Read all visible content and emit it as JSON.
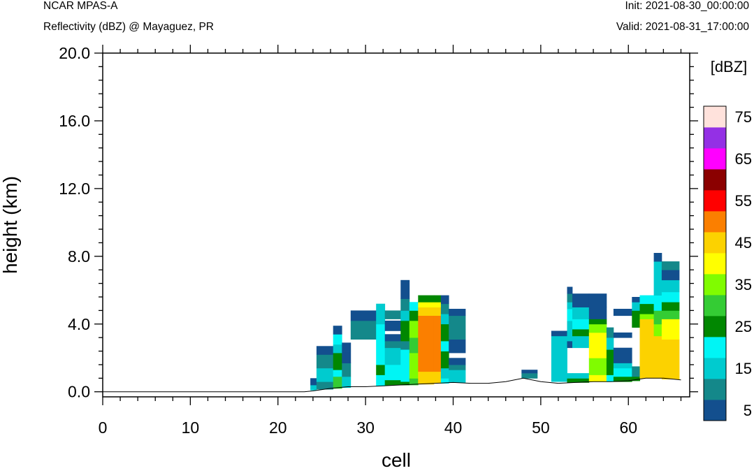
{
  "header": {
    "model": "NCAR MPAS-A",
    "field": "Reflectivity (dBZ) @ Mayaguez, PR",
    "init": "Init: 2021-08-30_00:00:00",
    "valid": "Valid: 2021-08-31_17:00:00"
  },
  "chart_data": {
    "type": "heatmap",
    "title": "Reflectivity (dBZ) @ Mayaguez, PR",
    "xlabel": "cell",
    "ylabel": "height (km)",
    "xlim": [
      0,
      67
    ],
    "ylim": [
      -0.3,
      20.0
    ],
    "x_ticks": [
      0,
      10,
      20,
      30,
      40,
      50,
      60
    ],
    "x_tick_labels": [
      "0",
      "10",
      "20",
      "30",
      "40",
      "50",
      "60"
    ],
    "y_ticks": [
      0,
      4,
      8,
      12,
      16,
      20
    ],
    "y_tick_labels": [
      "0.0",
      "4.0",
      "8.0",
      "12.0",
      "16.0",
      "20.0"
    ],
    "colorbar": {
      "title": "[dBZ]",
      "levels": [
        5,
        10,
        15,
        20,
        25,
        30,
        35,
        40,
        45,
        50,
        55,
        60,
        65,
        70,
        75
      ],
      "labels": [
        "5",
        "15",
        "25",
        "35",
        "45",
        "55",
        "65",
        "75"
      ],
      "colors": [
        "#134f8e",
        "#14888a",
        "#00cbcf",
        "#00f5f5",
        "#018701",
        "#34cc34",
        "#80fc00",
        "#ffff00",
        "#fcd200",
        "#fb7f00",
        "#ff0000",
        "#8b0000",
        "#ff00ff",
        "#9430e5",
        "#ffe2dc"
      ]
    },
    "terrain": [
      [
        0,
        0
      ],
      [
        23,
        0
      ],
      [
        24,
        0.05
      ],
      [
        26,
        0.2
      ],
      [
        28,
        0.3
      ],
      [
        30,
        0.3
      ],
      [
        32,
        0.35
      ],
      [
        34,
        0.4
      ],
      [
        36,
        0.45
      ],
      [
        38,
        0.5
      ],
      [
        40,
        0.55
      ],
      [
        42,
        0.5
      ],
      [
        44,
        0.5
      ],
      [
        46,
        0.6
      ],
      [
        48,
        0.8
      ],
      [
        50,
        0.6
      ],
      [
        52,
        0.5
      ],
      [
        54,
        0.55
      ],
      [
        56,
        0.6
      ],
      [
        58,
        0.6
      ],
      [
        60,
        0.65
      ],
      [
        62,
        0.8
      ],
      [
        64,
        0.8
      ],
      [
        66,
        0.7
      ]
    ],
    "columns": [
      {
        "x": [
          23.7,
          24.4
        ],
        "layers": [
          [
            0.1,
            0.4,
            15
          ],
          [
            0.4,
            0.8,
            5
          ]
        ]
      },
      {
        "x": [
          24.4,
          26.3
        ],
        "layers": [
          [
            0.15,
            0.6,
            10
          ],
          [
            0.6,
            1.4,
            15
          ],
          [
            1.4,
            2.2,
            10
          ],
          [
            2.2,
            2.7,
            5
          ]
        ]
      },
      {
        "x": [
          26.3,
          27.3
        ],
        "layers": [
          [
            0.2,
            0.9,
            30
          ],
          [
            0.9,
            1.3,
            20
          ],
          [
            1.3,
            2.3,
            25
          ],
          [
            2.3,
            2.8,
            15
          ],
          [
            2.8,
            3.4,
            20
          ],
          [
            3.4,
            3.9,
            5
          ]
        ]
      },
      {
        "x": [
          27.3,
          28.3
        ],
        "layers": [
          [
            0.25,
            0.9,
            15
          ],
          [
            0.9,
            1.7,
            10
          ],
          [
            1.7,
            2.4,
            5
          ],
          [
            2.4,
            2.9,
            5
          ]
        ]
      },
      {
        "x": [
          28.3,
          31.2
        ],
        "layers": [
          [
            3.1,
            4.2,
            10
          ],
          [
            4.2,
            4.8,
            5
          ]
        ]
      },
      {
        "x": [
          31.2,
          32.2
        ],
        "layers": [
          [
            0.35,
            1.0,
            20
          ],
          [
            1.0,
            1.6,
            25
          ],
          [
            1.6,
            4.0,
            20
          ],
          [
            4.0,
            5.2,
            15
          ]
        ]
      },
      {
        "x": [
          32.2,
          34.0
        ],
        "layers": [
          [
            0.4,
            0.7,
            25
          ],
          [
            0.7,
            1.6,
            20
          ],
          [
            1.6,
            2.6,
            15
          ],
          [
            2.6,
            3.0,
            10
          ],
          [
            3.0,
            3.4,
            5
          ],
          [
            3.6,
            4.2,
            5
          ],
          [
            4.3,
            4.8,
            10
          ]
        ]
      },
      {
        "x": [
          34.0,
          35.0
        ],
        "layers": [
          [
            0.4,
            0.6,
            25
          ],
          [
            0.6,
            2.5,
            20
          ],
          [
            2.5,
            3.0,
            10
          ],
          [
            3.0,
            4.2,
            25
          ],
          [
            4.2,
            4.8,
            15
          ],
          [
            4.8,
            5.5,
            10
          ],
          [
            5.5,
            6.6,
            5
          ]
        ]
      },
      {
        "x": [
          35.0,
          36.0
        ],
        "layers": [
          [
            0.4,
            0.8,
            30
          ],
          [
            0.8,
            2.3,
            35
          ],
          [
            2.3,
            3.2,
            30
          ],
          [
            3.2,
            4.2,
            35
          ],
          [
            4.2,
            4.8,
            25
          ],
          [
            4.8,
            5.3,
            20
          ]
        ]
      },
      {
        "x": [
          36.0,
          37.8
        ],
        "layers": [
          [
            0.45,
            1.2,
            45
          ],
          [
            1.2,
            4.5,
            50
          ],
          [
            4.5,
            5.0,
            45
          ],
          [
            5.0,
            5.3,
            40
          ],
          [
            5.3,
            5.7,
            25
          ]
        ]
      },
      {
        "x": [
          37.8,
          38.6
        ],
        "layers": [
          [
            0.5,
            1.2,
            45
          ],
          [
            1.2,
            4.5,
            50
          ],
          [
            4.5,
            5.0,
            45
          ],
          [
            5.0,
            5.3,
            40
          ],
          [
            5.3,
            5.7,
            25
          ]
        ]
      },
      {
        "x": [
          38.6,
          39.5
        ],
        "layers": [
          [
            0.5,
            0.8,
            20
          ],
          [
            0.8,
            1.4,
            15
          ],
          [
            1.4,
            2.4,
            25
          ],
          [
            2.4,
            3.0,
            20
          ],
          [
            3.0,
            4.0,
            25
          ],
          [
            4.0,
            4.6,
            15
          ],
          [
            4.6,
            5.2,
            10
          ],
          [
            5.2,
            5.7,
            5
          ]
        ]
      },
      {
        "x": [
          39.5,
          41.4
        ],
        "layers": [
          [
            0.55,
            1.3,
            15
          ],
          [
            1.3,
            1.6,
            10
          ],
          [
            1.6,
            2.0,
            5
          ],
          [
            2.3,
            3.1,
            5
          ],
          [
            3.1,
            3.7,
            10
          ],
          [
            3.7,
            4.5,
            10
          ],
          [
            4.5,
            4.9,
            5
          ]
        ]
      },
      {
        "x": [
          47.8,
          49.6
        ],
        "layers": [
          [
            0.8,
            1.1,
            10
          ],
          [
            1.1,
            1.3,
            5
          ]
        ]
      },
      {
        "x": [
          51.2,
          53.0
        ],
        "layers": [
          [
            0.6,
            3.3,
            15
          ],
          [
            3.3,
            3.6,
            5
          ]
        ]
      },
      {
        "x": [
          53.0,
          53.6
        ],
        "layers": [
          [
            0.55,
            0.8,
            25
          ],
          [
            0.8,
            1.1,
            15
          ],
          [
            2.6,
            3.0,
            5
          ],
          [
            3.0,
            4.2,
            15
          ],
          [
            4.2,
            4.9,
            20
          ],
          [
            4.9,
            5.3,
            15
          ],
          [
            5.3,
            5.8,
            10
          ],
          [
            5.8,
            6.2,
            5
          ]
        ]
      },
      {
        "x": [
          53.6,
          55.5
        ],
        "layers": [
          [
            0.55,
            0.8,
            25
          ],
          [
            0.8,
            1.1,
            15
          ],
          [
            2.6,
            3.3,
            15
          ],
          [
            3.3,
            3.7,
            25
          ],
          [
            3.7,
            4.3,
            20
          ],
          [
            4.3,
            5.0,
            15
          ],
          [
            5.0,
            5.8,
            5
          ]
        ]
      },
      {
        "x": [
          55.5,
          57.5
        ],
        "layers": [
          [
            0.6,
            1.0,
            40
          ],
          [
            1.0,
            2.0,
            35
          ],
          [
            2.0,
            3.5,
            40
          ],
          [
            3.5,
            4.0,
            35
          ],
          [
            4.0,
            4.3,
            25
          ],
          [
            4.3,
            5.0,
            5
          ],
          [
            5.0,
            5.8,
            5
          ]
        ]
      },
      {
        "x": [
          57.5,
          58.3
        ],
        "layers": [
          [
            0.6,
            1.0,
            20
          ],
          [
            1.0,
            2.5,
            25
          ],
          [
            2.5,
            3.2,
            15
          ],
          [
            3.2,
            3.8,
            10
          ]
        ]
      },
      {
        "x": [
          58.3,
          60.4
        ],
        "layers": [
          [
            0.6,
            0.9,
            25
          ],
          [
            0.9,
            1.4,
            20
          ],
          [
            1.4,
            1.7,
            15
          ],
          [
            1.7,
            2.6,
            5
          ],
          [
            3.2,
            3.5,
            5
          ],
          [
            4.5,
            4.9,
            5
          ]
        ]
      },
      {
        "x": [
          60.4,
          61.3
        ],
        "layers": [
          [
            0.65,
            0.9,
            25
          ],
          [
            0.9,
            1.5,
            10
          ],
          [
            3.8,
            4.8,
            25
          ],
          [
            4.8,
            5.3,
            15
          ],
          [
            5.3,
            5.6,
            5
          ]
        ]
      },
      {
        "x": [
          61.3,
          62.9
        ],
        "layers": [
          [
            0.8,
            4.3,
            45
          ],
          [
            4.3,
            4.6,
            35
          ],
          [
            4.6,
            5.2,
            25
          ],
          [
            5.2,
            5.7,
            20
          ]
        ]
      },
      {
        "x": [
          62.9,
          63.8
        ],
        "layers": [
          [
            0.8,
            3.3,
            45
          ],
          [
            3.3,
            4.0,
            35
          ],
          [
            4.0,
            4.8,
            30
          ],
          [
            4.8,
            5.7,
            20
          ],
          [
            5.7,
            7.7,
            15
          ],
          [
            7.7,
            8.2,
            5
          ]
        ]
      },
      {
        "x": [
          63.8,
          65.8
        ],
        "layers": [
          [
            0.75,
            3.1,
            45
          ],
          [
            3.1,
            4.3,
            40
          ],
          [
            4.3,
            4.8,
            30
          ],
          [
            4.8,
            5.3,
            25
          ],
          [
            5.3,
            5.9,
            20
          ],
          [
            5.9,
            6.6,
            15
          ],
          [
            6.6,
            7.2,
            5
          ],
          [
            7.2,
            7.7,
            10
          ]
        ]
      }
    ]
  }
}
